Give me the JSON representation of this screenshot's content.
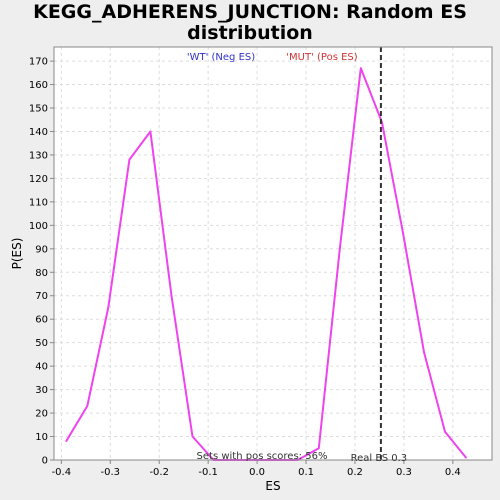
{
  "chart_data": {
    "type": "line",
    "title_line1": "KEGG_ADHERENS_JUNCTION: Random ES",
    "title_line2": "distribution",
    "xlabel": "ES",
    "ylabel": "P(ES)",
    "xlim": [
      -0.415,
      0.48
    ],
    "ylim": [
      0,
      176
    ],
    "x_ticks": [
      -0.4,
      -0.3,
      -0.2,
      -0.1,
      0.0,
      0.1,
      0.2,
      0.3,
      0.4
    ],
    "x_tick_labels": [
      "-0.4",
      "-0.3",
      "-0.2",
      "-0.1",
      "0.0",
      "0.1",
      "0.2",
      "0.3",
      "0.4"
    ],
    "y_ticks": [
      0,
      10,
      20,
      30,
      40,
      50,
      60,
      70,
      80,
      90,
      100,
      110,
      120,
      130,
      140,
      150,
      160,
      170
    ],
    "grid": true,
    "legend": [
      {
        "label": "'WT' (Neg ES)",
        "color": "#3333cc"
      },
      {
        "label": "'MUT' (Pos ES)",
        "color": "#cc3333"
      }
    ],
    "series": [
      {
        "color": "#ee44ee",
        "x": [
          -0.39,
          -0.347,
          -0.304,
          -0.261,
          -0.218,
          -0.175,
          -0.132,
          -0.089,
          -0.046,
          -0.003,
          0.04,
          0.083,
          0.126,
          0.169,
          0.212,
          0.255,
          0.298,
          0.341,
          0.384,
          0.427
        ],
        "y": [
          8,
          23,
          65,
          128,
          140,
          70,
          10,
          0,
          0,
          0,
          0,
          0,
          5,
          90,
          167,
          144,
          97,
          46,
          12,
          1
        ]
      }
    ],
    "real_es": 0.253,
    "real_es_label": "Real ES 0.3",
    "pos_scores_label": "Sets with pos scores: 56%"
  }
}
